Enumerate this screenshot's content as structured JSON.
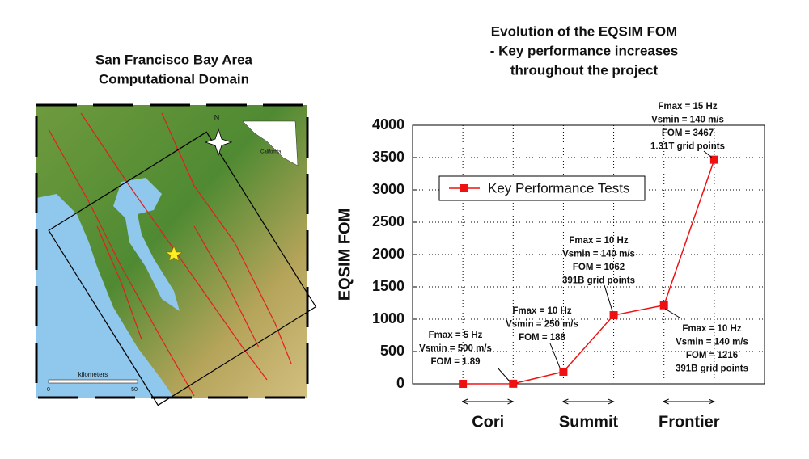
{
  "map": {
    "title_lines": [
      "San Francisco Bay Area",
      "Computational Domain"
    ],
    "north": "N",
    "inset_label": "California",
    "scale_label": "kilometers",
    "scale_ticks": [
      "0",
      "50"
    ]
  },
  "chart_data": {
    "type": "line",
    "title_lines": [
      "Evolution of the EQSIM FOM",
      "- Key performance increases",
      "throughout the project"
    ],
    "y_label": "EQSIM FOM",
    "categories": [
      null,
      null,
      null,
      null,
      null,
      null
    ],
    "series": [
      {
        "name": "Key Performance Tests",
        "color": "#ee1111",
        "values": [
          0,
          1.89,
          188,
          1062,
          1216,
          3467
        ]
      }
    ],
    "ylim": [
      0,
      4000
    ],
    "yticks": [
      0,
      500,
      1000,
      1500,
      2000,
      2500,
      3000,
      3500,
      4000
    ],
    "grid": true,
    "annotations": [
      [
        "Fmax = 5 Hz",
        "Vsmin = 500 m/s",
        "FOM = 1.89"
      ],
      [
        "Fmax = 10 Hz",
        "Vsmin = 250 m/s",
        "FOM = 188"
      ],
      [
        "Fmax = 10 Hz",
        "Vsmin = 140 m/s",
        "FOM = 1062",
        "391B grid points"
      ],
      [
        "Fmax = 10 Hz",
        "Vsmin = 140 m/s",
        "FOM = 1216",
        "391B grid points"
      ],
      [
        "Fmax = 15 Hz",
        "Vsmin = 140 m/s",
        "FOM = 3467",
        "1.31T grid points"
      ]
    ],
    "groups": [
      "Cori",
      "Summit",
      "Frontier"
    ]
  }
}
